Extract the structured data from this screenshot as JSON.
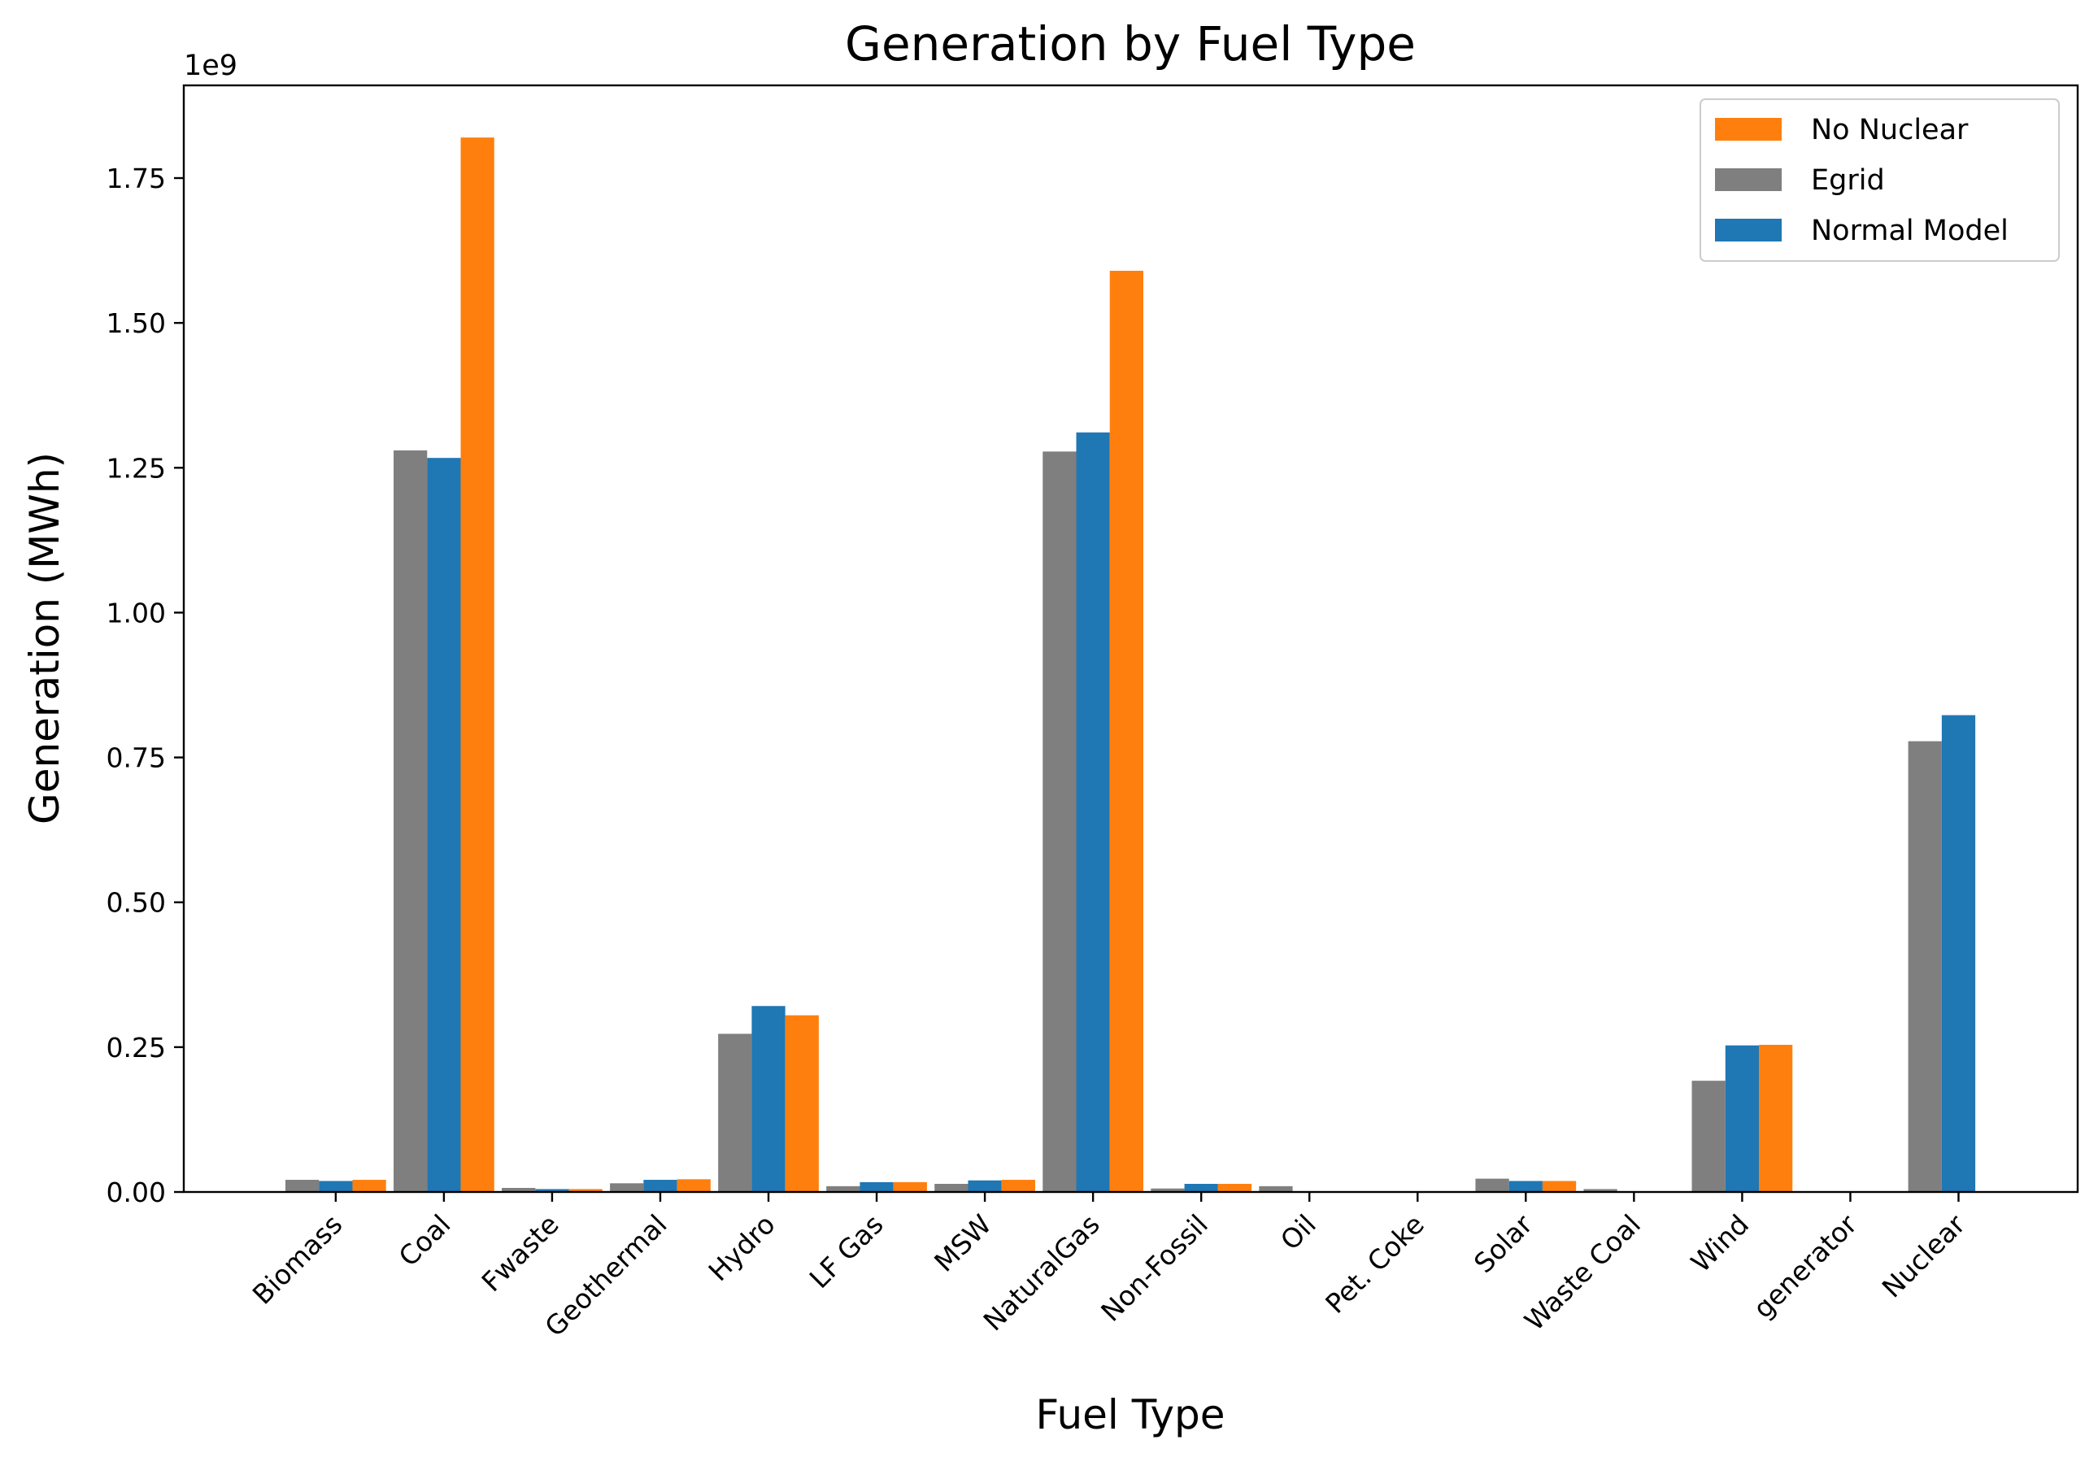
{
  "chart_data": {
    "type": "bar",
    "title": "Generation by Fuel Type",
    "xlabel": "Fuel Type",
    "ylabel": "Generation (MWh)",
    "y_scale_label": "1e9",
    "y_multiplier": 1000000000,
    "ylim": [
      0,
      1.91
    ],
    "yticks": [
      0.0,
      0.25,
      0.5,
      0.75,
      1.0,
      1.25,
      1.5,
      1.75
    ],
    "ytick_labels": [
      "0.00",
      "0.25",
      "0.50",
      "0.75",
      "1.00",
      "1.25",
      "1.50",
      "1.75"
    ],
    "categories": [
      "Biomass",
      "Coal",
      "Fwaste",
      "Geothermal",
      "Hydro",
      "LF Gas",
      "MSW",
      "NaturalGas",
      "Non-Fossil",
      "Oil",
      "Pet. Coke",
      "Solar",
      "Waste Coal",
      "Wind",
      "generator",
      "Nuclear"
    ],
    "series": [
      {
        "name": "Egrid",
        "color": "#7f7f7f",
        "offset": -1,
        "values": [
          0.021,
          1.28,
          0.007,
          0.015,
          0.273,
          0.01,
          0.014,
          1.278,
          0.006,
          0.01,
          0.0,
          0.023,
          0.005,
          0.192,
          0.0,
          0.778
        ]
      },
      {
        "name": "Normal Model",
        "color": "#1f77b4",
        "offset": 0,
        "values": [
          0.019,
          1.267,
          0.005,
          0.021,
          0.321,
          0.017,
          0.02,
          1.311,
          0.014,
          0.0,
          0.0,
          0.019,
          0.0,
          0.253,
          0.0,
          0.823
        ]
      },
      {
        "name": "No Nuclear",
        "color": "#ff7f0e",
        "offset": 1,
        "values": [
          0.021,
          1.82,
          0.005,
          0.022,
          0.305,
          0.017,
          0.021,
          1.59,
          0.014,
          0.0,
          0.0,
          0.019,
          0.0,
          0.254,
          0.0,
          null
        ]
      }
    ],
    "legend": {
      "position": "top-right",
      "order": [
        "No Nuclear",
        "Egrid",
        "Normal Model"
      ]
    },
    "grid": false
  }
}
